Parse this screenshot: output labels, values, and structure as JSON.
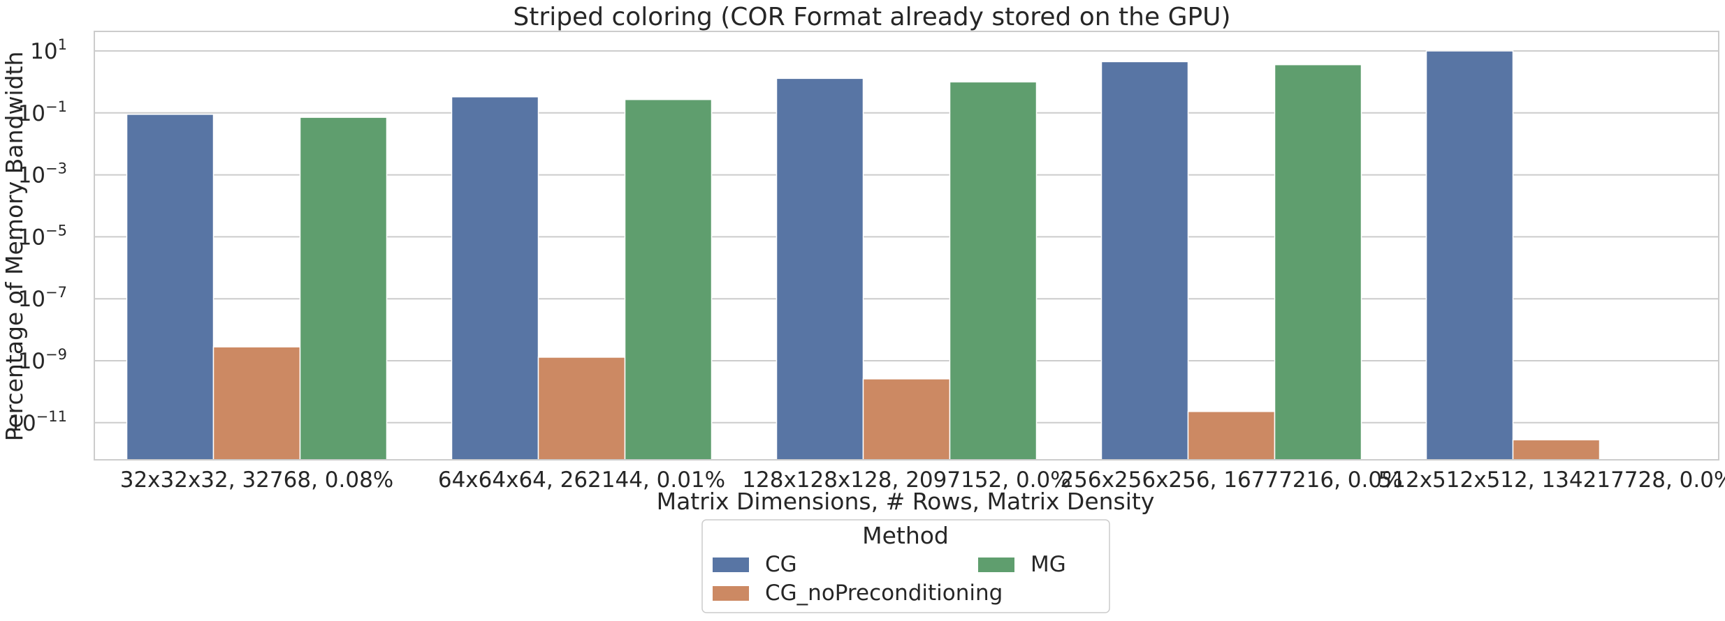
{
  "chart_data": {
    "type": "bar",
    "title": "Striped coloring (COR Format already stored on the GPU)",
    "xlabel": "Matrix Dimensions, # Rows, Matrix Density",
    "ylabel": "Percentage of Memory Bandwidth",
    "yscale": "log",
    "ylim": [
      5e-13,
      40
    ],
    "yticks": [
      {
        "exp": "1"
      },
      {
        "exp": "-1"
      },
      {
        "exp": "-3"
      },
      {
        "exp": "-5"
      },
      {
        "exp": "-7"
      },
      {
        "exp": "-9"
      },
      {
        "exp": "-11"
      }
    ],
    "categories": [
      "32x32x32, 32768, 0.08%",
      "64x64x64, 262144, 0.01%",
      "128x128x128, 2097152, 0.0%",
      "256x256x256, 16777216, 0.0%",
      "512x512x512, 134217728, 0.0%"
    ],
    "series": [
      {
        "name": "CG",
        "color": "#5875a4",
        "values": [
          0.09,
          0.33,
          1.3,
          4.5,
          10.0
        ]
      },
      {
        "name": "CG_noPreconditioning",
        "color": "#cc8963",
        "values": [
          2.8e-09,
          1.3e-09,
          2.6e-10,
          2.3e-11,
          2.8e-12
        ]
      },
      {
        "name": "MG",
        "color": "#5f9e6e",
        "values": [
          0.072,
          0.27,
          1.0,
          3.6,
          null
        ]
      }
    ],
    "grid": true,
    "legend": {
      "title": "Method",
      "placement": "bottom-center",
      "columns": 2
    }
  }
}
